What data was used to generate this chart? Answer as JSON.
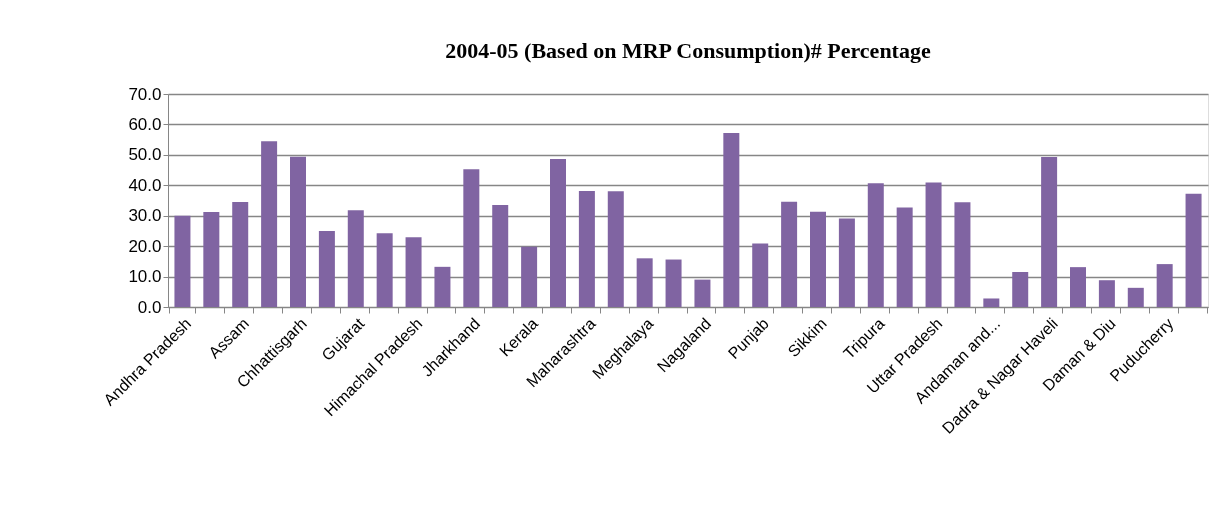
{
  "chart_data": {
    "type": "bar",
    "title": "2004-05 (Based on MRP Consumption)# Percentage",
    "categories": [
      "Andhra Pradesh",
      null,
      "Assam",
      null,
      "Chhattisgarh",
      null,
      "Gujarat",
      null,
      "Himachal Pradesh",
      null,
      "Jharkhand",
      null,
      "Kerala",
      null,
      "Maharashtra",
      null,
      "Meghalaya",
      null,
      "Nagaland",
      null,
      "Punjab",
      null,
      "Sikkim",
      null,
      "Tripura",
      null,
      "Uttar Pradesh",
      null,
      "Andaman and...",
      null,
      "Dadra & Nagar Haveli",
      null,
      "Daman & Diu",
      null,
      "Puducherry",
      null
    ],
    "values": [
      30.0,
      31.2,
      34.5,
      54.5,
      49.4,
      25.0,
      31.8,
      24.2,
      22.9,
      13.2,
      45.3,
      33.5,
      19.8,
      48.6,
      38.1,
      38.0,
      16.0,
      15.6,
      9.0,
      57.2,
      20.9,
      34.6,
      31.3,
      29.1,
      40.7,
      32.7,
      40.9,
      34.4,
      2.8,
      11.5,
      49.3,
      13.1,
      8.8,
      6.3,
      14.1,
      37.2
    ],
    "color": "#8064a2",
    "ylim": [
      0,
      70
    ],
    "yticks": [
      {
        "value": 0,
        "label": "0.0"
      },
      {
        "value": 10,
        "label": "10.0"
      },
      {
        "value": 20,
        "label": "20.0"
      },
      {
        "value": 30,
        "label": "30.0"
      },
      {
        "value": 40,
        "label": "40.0"
      },
      {
        "value": 50,
        "label": "50.0"
      },
      {
        "value": 60,
        "label": "60.0"
      },
      {
        "value": 70,
        "label": "70.0"
      }
    ],
    "grid": "y"
  }
}
